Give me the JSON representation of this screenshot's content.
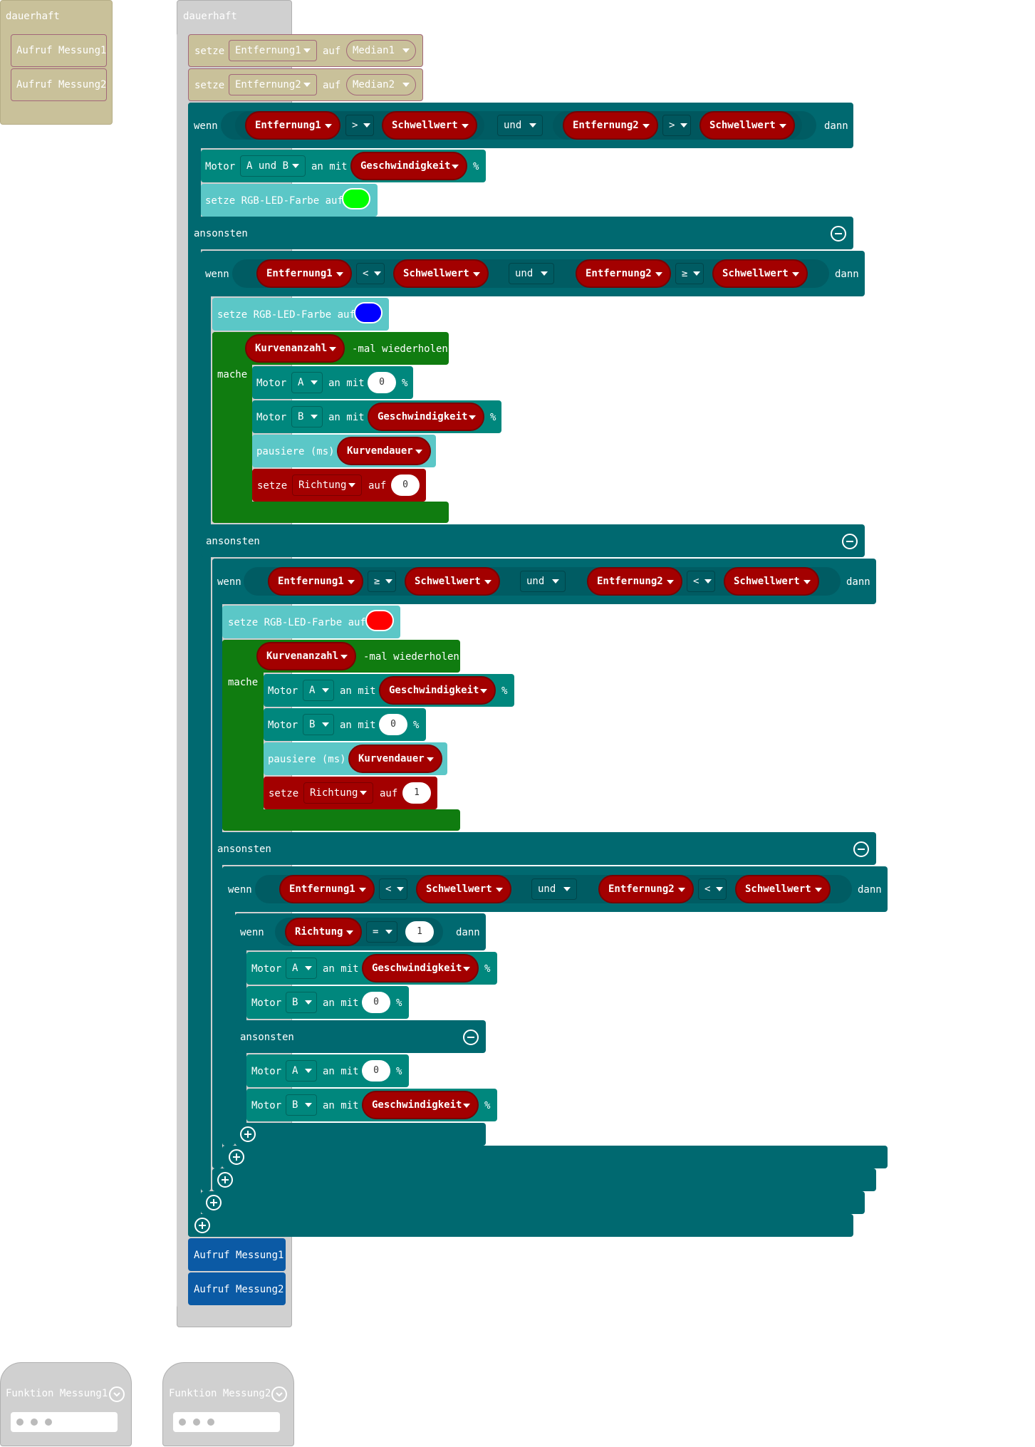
{
  "forever1": {
    "label": "dauerhaft",
    "calls": [
      "Aufruf Messung1",
      "Aufruf Messung2"
    ]
  },
  "forever2": {
    "label": "dauerhaft",
    "set1": {
      "kw": "setze",
      "var": "Entfernung1",
      "to": "auf",
      "val": "Median1"
    },
    "set2": {
      "kw": "setze",
      "var": "Entfernung2",
      "to": "auf",
      "val": "Median2"
    }
  },
  "kw": {
    "wenn": "wenn",
    "dann": "dann",
    "und": "und",
    "ansonsten": "ansonsten",
    "motor": "Motor",
    "an_mit": "an mit",
    "percent": "%",
    "rgb": "setze RGB-LED-Farbe auf",
    "mal": "-mal wiederholen",
    "mache": "mache",
    "pause": "pausiere (ms)",
    "setze": "setze",
    "auf": "auf"
  },
  "vars": {
    "e1": "Entfernung1",
    "e2": "Entfernung2",
    "sw": "Schwellwert",
    "speed": "Geschwindigkeit",
    "kurv": "Kurvenanzahl",
    "kdauer": "Kurvendauer",
    "richtung": "Richtung"
  },
  "motors": {
    "ab": "A und B",
    "a": "A",
    "b": "B"
  },
  "ops": {
    "gt": ">",
    "lt": "<",
    "ge": "≥",
    "eq": "="
  },
  "nums": {
    "zero": "0",
    "one": "1"
  },
  "colors": {
    "green": "#00ff00",
    "blue": "#0000ff",
    "red": "#ff0000"
  },
  "calls": {
    "m1": "Aufruf Messung1",
    "m2": "Aufruf Messung2"
  },
  "functions": [
    {
      "label": "Funktion Messung1"
    },
    {
      "label": "Funktion Messung2"
    }
  ],
  "icons": [
    "chevron-down-icon",
    "minus-circle-icon",
    "plus-circle-icon",
    "dropdown-caret-icon"
  ]
}
